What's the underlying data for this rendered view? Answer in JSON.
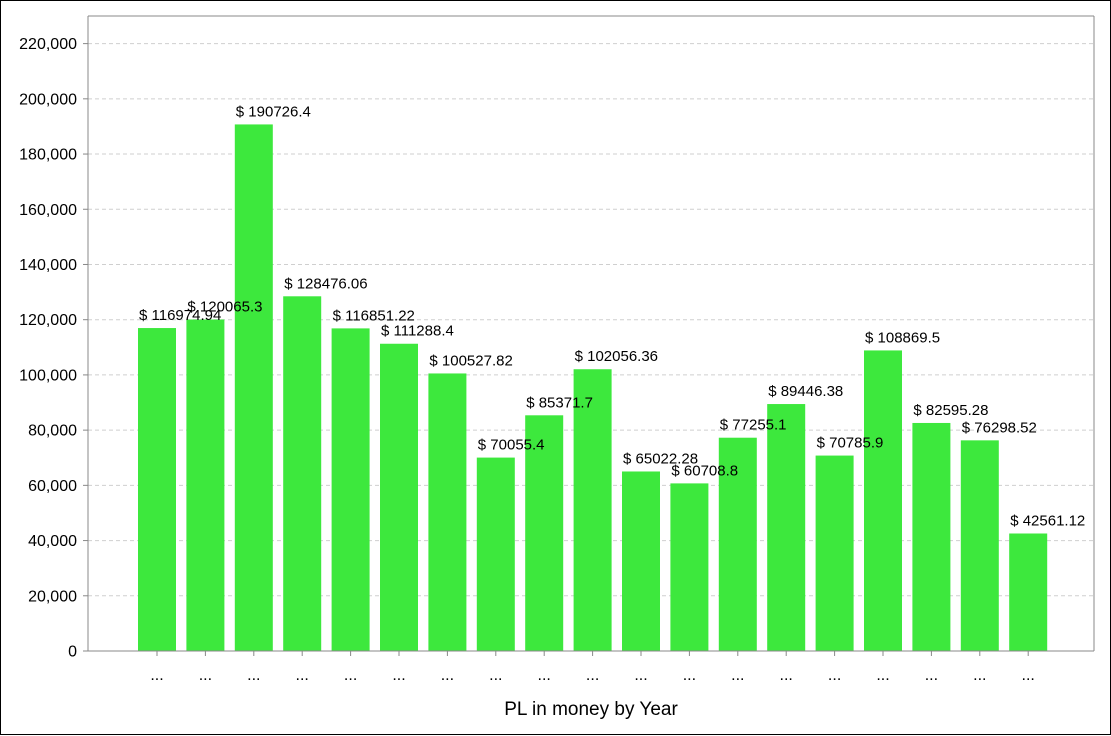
{
  "chart_data": {
    "type": "bar",
    "title": "",
    "xlabel": "PL in money by Year",
    "ylabel": "",
    "ylim": [
      0,
      230000
    ],
    "yticks": [
      0,
      20000,
      40000,
      60000,
      80000,
      100000,
      120000,
      140000,
      160000,
      180000,
      200000,
      220000
    ],
    "ytick_labels": [
      "0",
      "20,000",
      "40,000",
      "60,000",
      "80,000",
      "100,000",
      "120,000",
      "140,000",
      "160,000",
      "180,000",
      "200,000",
      "220,000"
    ],
    "grid": true,
    "legend": "none",
    "bar_color": "#3de83d",
    "categories": [
      "...",
      "...",
      "...",
      "...",
      "...",
      "...",
      "...",
      "...",
      "...",
      "...",
      "...",
      "...",
      "...",
      "...",
      "...",
      "...",
      "...",
      "...",
      "..."
    ],
    "values": [
      116974.94,
      120065.3,
      190726.4,
      128476.06,
      116851.22,
      111288.4,
      100527.82,
      70055.4,
      85371.7,
      102056.36,
      65022.28,
      60708.8,
      77255.1,
      89446.38,
      70785.9,
      108869.5,
      82595.28,
      76298.52,
      42561.12
    ],
    "data_labels": [
      "$ 116974.94",
      "$ 120065.3",
      "$ 190726.4",
      "$ 128476.06",
      "$ 116851.22",
      "$ 111288.4",
      "$ 100527.82",
      "$ 70055.4",
      "$ 85371.7",
      "$ 102056.36",
      "$ 65022.28",
      "$ 60708.8",
      "$ 77255.1",
      "$ 89446.38",
      "$ 70785.9",
      "$ 108869.5",
      "$ 82595.28",
      "$ 76298.52",
      "$ 42561.12"
    ]
  }
}
